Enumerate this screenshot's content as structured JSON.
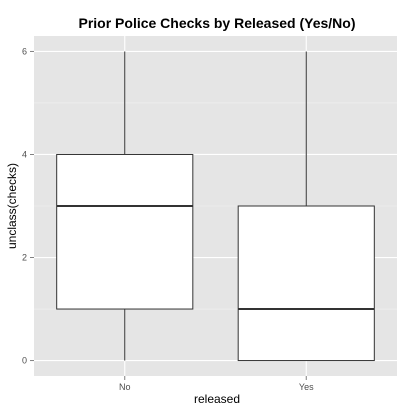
{
  "chart_data": {
    "type": "box",
    "title": "Prior Police Checks by Released (Yes/No)",
    "xlabel": "released",
    "ylabel": "unclass(checks)",
    "categories": [
      "No",
      "Yes"
    ],
    "ylim": [
      -0.3,
      6.3
    ],
    "yticks": [
      0,
      2,
      4,
      6
    ],
    "boxes": [
      {
        "category": "No",
        "min": 0,
        "q1": 1,
        "median": 3,
        "q3": 4,
        "max": 6
      },
      {
        "category": "Yes",
        "min": 0,
        "q1": 0,
        "median": 1,
        "q3": 3,
        "max": 6
      }
    ],
    "grid": true,
    "legend": "none",
    "colors": {
      "panel": "#e5e5e5",
      "grid_major": "#ffffff",
      "grid_minor": "#f2f2f2",
      "box_fill": "#ffffff",
      "box_line": "#333333",
      "tick_text": "#4d4d4d"
    }
  }
}
